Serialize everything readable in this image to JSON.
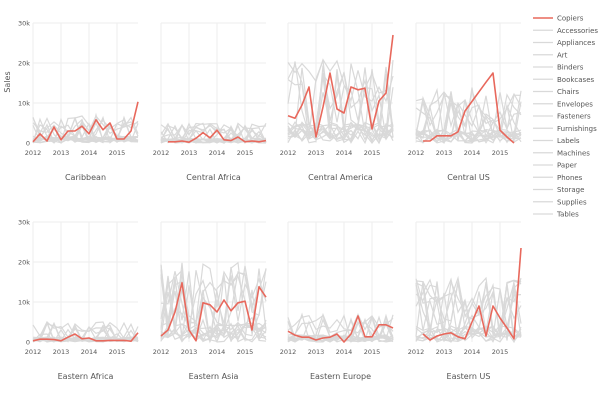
{
  "chart_data": {
    "type": "line",
    "layout": "small-multiples 2x4",
    "ylabel": "Sales",
    "ylim": [
      0,
      30000
    ],
    "y_ticks": [
      "0",
      "10k",
      "20k",
      "30k"
    ],
    "y_tick_values": [
      0,
      10000,
      20000,
      30000
    ],
    "x_ticks": [
      "2012",
      "2013",
      "2014",
      "2015"
    ],
    "x_tick_values": [
      2012,
      2013,
      2014,
      2015
    ],
    "x": [
      2012,
      2012.25,
      2012.5,
      2012.75,
      2013,
      2013.25,
      2013.5,
      2013.75,
      2014,
      2014.25,
      2014.5,
      2014.75,
      2015,
      2015.25,
      2015.5,
      2015.75
    ],
    "grid": true,
    "legend_position": "right",
    "highlight_color": "#e8685c",
    "other_color": "#d9d9d9",
    "highlight_series": "Copiers",
    "legend": [
      "Copiers",
      "Accessories",
      "Appliances",
      "Art",
      "Binders",
      "Bookcases",
      "Chairs",
      "Envelopes",
      "Fasteners",
      "Furnishings",
      "Labels",
      "Machines",
      "Paper",
      "Phones",
      "Storage",
      "Supplies",
      "Tables"
    ],
    "panels": [
      {
        "title": "Caribbean",
        "copiers": [
          300,
          2300,
          500,
          4000,
          800,
          3000,
          3000,
          4200,
          2300,
          5800,
          3300,
          5000,
          1000,
          1000,
          3000,
          10300
        ],
        "others_max": 7000
      },
      {
        "title": "Central Africa",
        "copiers": [
          null,
          300,
          300,
          500,
          200,
          1200,
          2600,
          1300,
          3200,
          800,
          600,
          1500,
          300,
          500,
          300,
          600
        ],
        "others_max": 5000
      },
      {
        "title": "Central America",
        "copiers": [
          6800,
          6200,
          9500,
          14000,
          1500,
          9000,
          17500,
          8500,
          7500,
          14000,
          13300,
          13700,
          3500,
          10500,
          12500,
          27000
        ],
        "others_max": 21000
      },
      {
        "title": "Central US",
        "copiers": [
          null,
          500,
          500,
          1800,
          1800,
          1800,
          2800,
          8000,
          10400,
          12800,
          15200,
          17500,
          3200,
          1500,
          0,
          null
        ],
        "others_max": 14000
      },
      {
        "title": "Eastern Africa",
        "copiers": [
          300,
          700,
          700,
          600,
          300,
          1200,
          2000,
          800,
          1000,
          300,
          300,
          400,
          400,
          400,
          200,
          2300
        ],
        "others_max": 5000
      },
      {
        "title": "Eastern Asia",
        "copiers": [
          1500,
          3000,
          7500,
          14800,
          3000,
          300,
          9800,
          9300,
          7500,
          10500,
          7800,
          9800,
          10200,
          3000,
          13800,
          11200
        ],
        "others_max": 20000
      },
      {
        "title": "Eastern Europe",
        "copiers": [
          2700,
          1700,
          1200,
          1200,
          500,
          1000,
          1200,
          2000,
          0,
          2000,
          6500,
          1300,
          1300,
          4300,
          4300,
          3500
        ],
        "others_max": 7000
      },
      {
        "title": "Eastern US",
        "copiers": [
          null,
          2000,
          500,
          1500,
          2000,
          2300,
          1300,
          800,
          5000,
          9000,
          1500,
          9000,
          6000,
          3500,
          800,
          23500
        ],
        "others_max": 16000
      }
    ]
  }
}
